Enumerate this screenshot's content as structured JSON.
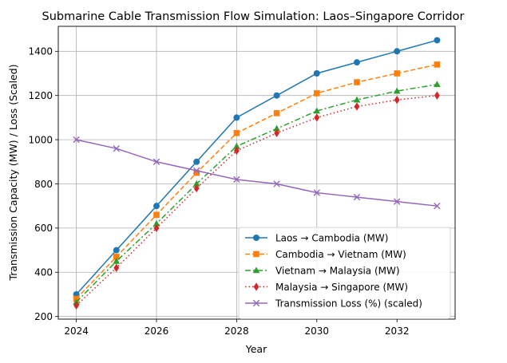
{
  "chart_data": {
    "type": "line",
    "title": "Submarine Cable Transmission Flow Simulation: Laos–Singapore Corridor",
    "xlabel": "Year",
    "ylabel": "Transmission Capacity (MW) / Loss (Scaled)",
    "x": [
      2024,
      2025,
      2026,
      2027,
      2028,
      2029,
      2030,
      2031,
      2032,
      2033
    ],
    "xlim": [
      2023.55,
      2033.45
    ],
    "ylim": [
      188,
      1513
    ],
    "xticks": [
      2024,
      2026,
      2028,
      2030,
      2032
    ],
    "yticks": [
      200,
      400,
      600,
      800,
      1000,
      1200,
      1400
    ],
    "grid": true,
    "legend_position": "lower-right",
    "series": [
      {
        "name": "Laos → Cambodia (MW)",
        "color": "#1f77b4",
        "linestyle": "solid",
        "marker": "circle",
        "values": [
          300,
          500,
          700,
          900,
          1100,
          1200,
          1300,
          1350,
          1400,
          1450
        ]
      },
      {
        "name": "Cambodia → Vietnam (MW)",
        "color": "#ff7f0e",
        "linestyle": "dashed",
        "marker": "square",
        "values": [
          280,
          470,
          660,
          850,
          1030,
          1120,
          1210,
          1260,
          1300,
          1340
        ]
      },
      {
        "name": "Vietnam → Malaysia (MW)",
        "color": "#2ca02c",
        "linestyle": "dashdot",
        "marker": "triangle",
        "values": [
          265,
          450,
          620,
          800,
          970,
          1050,
          1130,
          1180,
          1220,
          1250
        ]
      },
      {
        "name": "Malaysia → Singapore (MW)",
        "color": "#d62728",
        "linestyle": "dotted",
        "marker": "diamond",
        "values": [
          250,
          420,
          600,
          780,
          950,
          1030,
          1100,
          1150,
          1180,
          1200
        ]
      },
      {
        "name": "Transmission Loss (%) (scaled)",
        "color": "#9467bd",
        "linestyle": "solid",
        "marker": "x",
        "values": [
          1000,
          960,
          900,
          860,
          820,
          800,
          760,
          740,
          720,
          700
        ]
      }
    ]
  }
}
